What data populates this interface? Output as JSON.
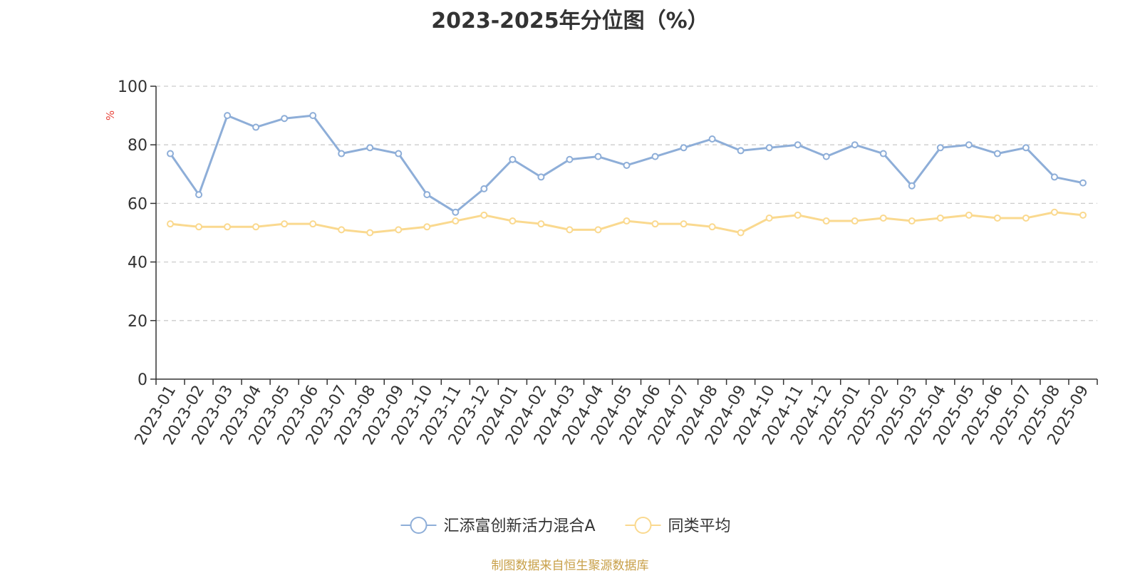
{
  "chart_data": {
    "type": "line",
    "title": "2023-2025年分位图（%）",
    "ylabel": "%",
    "xlabel": "",
    "ylim": [
      0,
      100
    ],
    "yticks": [
      0,
      20,
      40,
      60,
      80,
      100
    ],
    "grid": true,
    "legend_position": "bottom",
    "categories": [
      "2023-01",
      "2023-02",
      "2023-03",
      "2023-04",
      "2023-05",
      "2023-06",
      "2023-07",
      "2023-08",
      "2023-09",
      "2023-10",
      "2023-11",
      "2023-12",
      "2024-01",
      "2024-02",
      "2024-03",
      "2024-04",
      "2024-05",
      "2024-06",
      "2024-07",
      "2024-08",
      "2024-09",
      "2024-10",
      "2024-11",
      "2024-12",
      "2025-01",
      "2025-02",
      "2025-03",
      "2025-04",
      "2025-05",
      "2025-06",
      "2025-07",
      "2025-08",
      "2025-09"
    ],
    "series": [
      {
        "name": "汇添富创新活力混合A",
        "color": "#8eaed8",
        "values": [
          77,
          63,
          90,
          86,
          89,
          90,
          77,
          79,
          77,
          63,
          57,
          65,
          75,
          69,
          75,
          76,
          73,
          76,
          79,
          82,
          78,
          79,
          80,
          76,
          80,
          77,
          66,
          79,
          80,
          77,
          79,
          69,
          67
        ]
      },
      {
        "name": "同类平均",
        "color": "#fad98f",
        "values": [
          53,
          52,
          52,
          52,
          53,
          53,
          51,
          50,
          51,
          52,
          54,
          56,
          54,
          53,
          51,
          51,
          54,
          53,
          53,
          52,
          50,
          55,
          56,
          54,
          54,
          55,
          54,
          55,
          56,
          55,
          55,
          57,
          56
        ]
      }
    ]
  },
  "source_note": "制图数据来自恒生聚源数据库",
  "colors": {
    "axis": "#333333",
    "grid": "#cccccc",
    "ylabel": "#e8453c",
    "source": "#c8a049"
  }
}
